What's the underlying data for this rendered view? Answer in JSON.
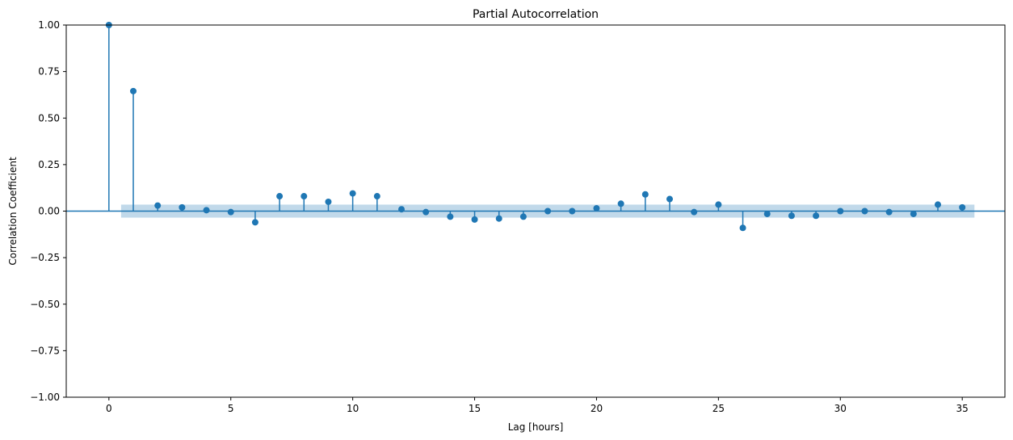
{
  "chart_data": {
    "type": "scatter",
    "title": "Partial Autocorrelation",
    "xlabel": "Lag [hours]",
    "ylabel": "Correlation Coefficient",
    "xlim": [
      -1.75,
      36.75
    ],
    "ylim": [
      -1.0,
      1.0
    ],
    "xticks": [
      0,
      5,
      10,
      15,
      20,
      25,
      30,
      35
    ],
    "xtick_labels": [
      "0",
      "5",
      "10",
      "15",
      "20",
      "25",
      "30",
      "35"
    ],
    "yticks": [
      -1.0,
      -0.75,
      -0.5,
      -0.25,
      0.0,
      0.25,
      0.5,
      0.75,
      1.0
    ],
    "ytick_labels": [
      "−1.00",
      "−0.75",
      "−0.50",
      "−0.25",
      "0.00",
      "0.25",
      "0.50",
      "0.75",
      "1.00"
    ],
    "grid": false,
    "legend": false,
    "colors": {
      "stem": "#1f77b4",
      "confidence_band": "#1f77b4"
    },
    "confidence_band": {
      "x_start": 0.5,
      "x_end": 35.5,
      "lower": -0.035,
      "upper": 0.035
    },
    "lags": [
      0,
      1,
      2,
      3,
      4,
      5,
      6,
      7,
      8,
      9,
      10,
      11,
      12,
      13,
      14,
      15,
      16,
      17,
      18,
      19,
      20,
      21,
      22,
      23,
      24,
      25,
      26,
      27,
      28,
      29,
      30,
      31,
      32,
      33,
      34,
      35
    ],
    "values": [
      1.0,
      0.645,
      0.03,
      0.02,
      0.005,
      -0.005,
      -0.06,
      0.08,
      0.08,
      0.05,
      0.095,
      0.08,
      0.01,
      -0.005,
      -0.03,
      -0.045,
      -0.04,
      -0.03,
      0.0,
      0.0,
      0.015,
      0.04,
      0.09,
      0.065,
      -0.005,
      0.035,
      -0.09,
      -0.015,
      -0.025,
      -0.025,
      0.0,
      0.0,
      -0.005,
      -0.015,
      0.035,
      0.02
    ]
  }
}
